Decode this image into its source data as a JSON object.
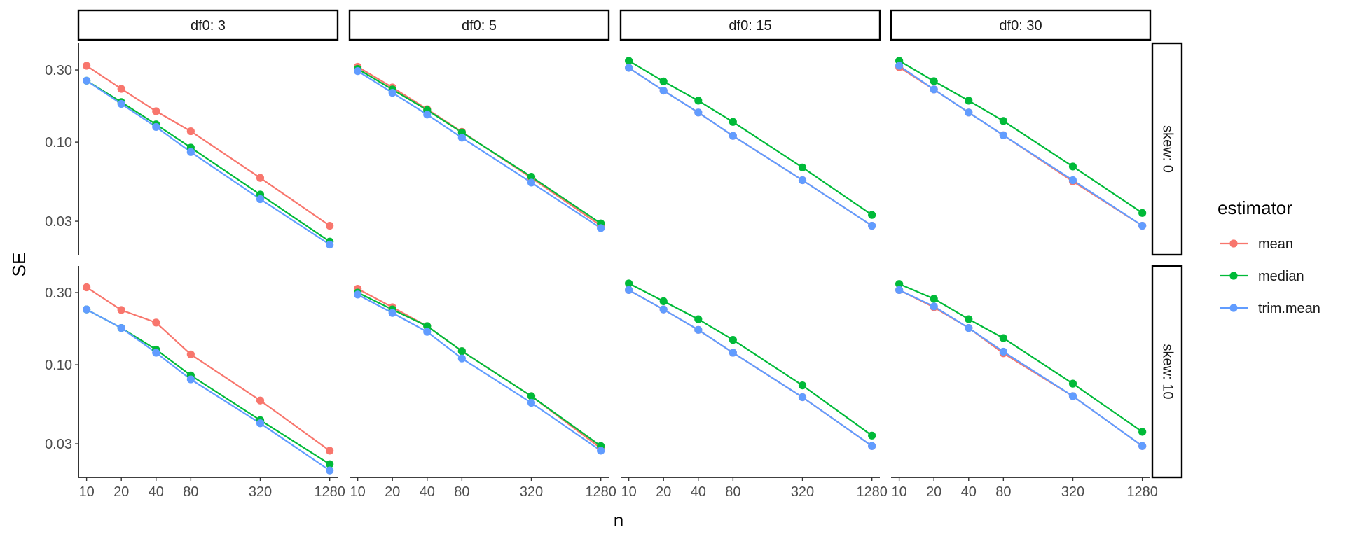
{
  "chart_data": {
    "type": "line",
    "xlabel": "n",
    "ylabel": "SE",
    "x_scale": "log",
    "y_scale": "log",
    "x_ticks": [
      10,
      20,
      40,
      80,
      320,
      1280
    ],
    "x_tick_labels": [
      "10",
      "20",
      "40",
      "80",
      "320",
      "1280"
    ],
    "y_ticks": [
      0.03,
      0.1,
      0.3
    ],
    "y_tick_labels": [
      "0.03",
      "0.10",
      "0.30"
    ],
    "ylim": [
      0.018,
      0.45
    ],
    "xlim": [
      8.5,
      1500
    ],
    "grid": false,
    "legend_position": "right",
    "legend": {
      "title": "estimator",
      "entries": [
        {
          "name": "mean",
          "color": "#F8766D"
        },
        {
          "name": "median",
          "color": "#00BA38"
        },
        {
          "name": "trim.mean",
          "color": "#619CFF"
        }
      ]
    },
    "col_strips": [
      "df0: 3",
      "df0: 5",
      "df0: 15",
      "df0: 30"
    ],
    "row_strips": [
      "skew: 0",
      "skew: 10"
    ],
    "x": [
      10,
      20,
      40,
      80,
      320,
      1280
    ],
    "panels": [
      {
        "row": 0,
        "col": 0,
        "series": [
          {
            "name": "mean",
            "values": [
              0.32,
              0.225,
              0.16,
              0.118,
              0.058,
              0.028
            ]
          },
          {
            "name": "median",
            "values": [
              0.255,
              0.184,
              0.131,
              0.092,
              0.045,
              0.022
            ]
          },
          {
            "name": "trim.mean",
            "values": [
              0.255,
              0.179,
              0.126,
              0.086,
              0.042,
              0.021
            ]
          }
        ]
      },
      {
        "row": 0,
        "col": 1,
        "series": [
          {
            "name": "mean",
            "values": [
              0.315,
              0.23,
              0.165,
              0.117,
              0.058,
              0.028
            ]
          },
          {
            "name": "median",
            "values": [
              0.305,
              0.223,
              0.163,
              0.116,
              0.059,
              0.029
            ]
          },
          {
            "name": "trim.mean",
            "values": [
              0.295,
              0.212,
              0.152,
              0.107,
              0.054,
              0.027
            ]
          }
        ]
      },
      {
        "row": 0,
        "col": 2,
        "series": [
          {
            "name": "mean",
            "values": [
              0.31,
              0.219,
              0.157,
              0.11,
              0.056,
              0.028
            ]
          },
          {
            "name": "median",
            "values": [
              0.345,
              0.252,
              0.188,
              0.136,
              0.068,
              0.033
            ]
          },
          {
            "name": "trim.mean",
            "values": [
              0.31,
              0.219,
              0.157,
              0.11,
              0.056,
              0.028
            ]
          }
        ]
      },
      {
        "row": 0,
        "col": 3,
        "series": [
          {
            "name": "mean",
            "values": [
              0.313,
              0.223,
              0.157,
              0.111,
              0.055,
              0.028
            ]
          },
          {
            "name": "median",
            "values": [
              0.345,
              0.253,
              0.188,
              0.138,
              0.069,
              0.034
            ]
          },
          {
            "name": "trim.mean",
            "values": [
              0.32,
              0.223,
              0.157,
              0.111,
              0.056,
              0.028
            ]
          }
        ]
      },
      {
        "row": 1,
        "col": 0,
        "series": [
          {
            "name": "mean",
            "values": [
              0.325,
              0.23,
              0.19,
              0.117,
              0.058,
              0.027
            ]
          },
          {
            "name": "median",
            "values": [
              0.232,
              0.175,
              0.126,
              0.085,
              0.043,
              0.022
            ]
          },
          {
            "name": "trim.mean",
            "values": [
              0.232,
              0.175,
              0.12,
              0.08,
              0.041,
              0.02
            ]
          }
        ]
      },
      {
        "row": 1,
        "col": 1,
        "series": [
          {
            "name": "mean",
            "values": [
              0.318,
              0.24,
              0.18,
              0.123,
              0.062,
              0.028
            ]
          },
          {
            "name": "median",
            "values": [
              0.3,
              0.232,
              0.18,
              0.123,
              0.062,
              0.029
            ]
          },
          {
            "name": "trim.mean",
            "values": [
              0.291,
              0.22,
              0.165,
              0.11,
              0.056,
              0.027
            ]
          }
        ]
      },
      {
        "row": 1,
        "col": 2,
        "series": [
          {
            "name": "mean",
            "values": [
              0.312,
              0.232,
              0.17,
              0.12,
              0.061,
              0.029
            ]
          },
          {
            "name": "median",
            "values": [
              0.345,
              0.263,
              0.2,
              0.146,
              0.073,
              0.034
            ]
          },
          {
            "name": "trim.mean",
            "values": [
              0.312,
              0.232,
              0.17,
              0.12,
              0.061,
              0.029
            ]
          }
        ]
      },
      {
        "row": 1,
        "col": 3,
        "series": [
          {
            "name": "mean",
            "values": [
              0.312,
              0.24,
              0.175,
              0.119,
              0.062,
              0.029
            ]
          },
          {
            "name": "median",
            "values": [
              0.342,
              0.273,
              0.2,
              0.15,
              0.075,
              0.036
            ]
          },
          {
            "name": "trim.mean",
            "values": [
              0.312,
              0.243,
              0.175,
              0.122,
              0.062,
              0.029
            ]
          }
        ]
      }
    ]
  }
}
